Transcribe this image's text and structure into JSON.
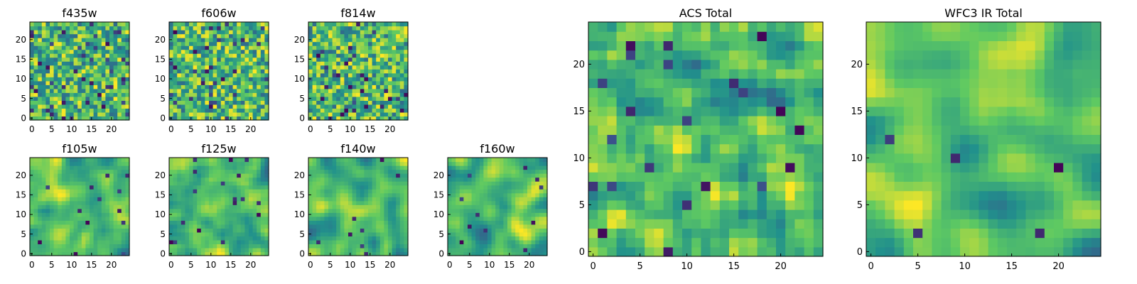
{
  "chart_data": [
    {
      "type": "heatmap",
      "title": "f435w",
      "grid_size": 25,
      "xlim": [
        0,
        24
      ],
      "ylim": [
        0,
        24
      ],
      "xticks": [
        "0",
        "5",
        "10",
        "15",
        "20"
      ],
      "yticks": [
        "0",
        "5",
        "10",
        "15",
        "20"
      ],
      "seed": 11,
      "smooth": 0,
      "dark_fraction": 0.06
    },
    {
      "type": "heatmap",
      "title": "f606w",
      "grid_size": 25,
      "xlim": [
        0,
        24
      ],
      "ylim": [
        0,
        24
      ],
      "xticks": [
        "0",
        "5",
        "10",
        "15",
        "20"
      ],
      "yticks": [
        "0",
        "5",
        "10",
        "15",
        "20"
      ],
      "seed": 23,
      "smooth": 0,
      "dark_fraction": 0.05
    },
    {
      "type": "heatmap",
      "title": "f814w",
      "grid_size": 25,
      "xlim": [
        0,
        24
      ],
      "ylim": [
        0,
        24
      ],
      "xticks": [
        "0",
        "5",
        "10",
        "15",
        "20"
      ],
      "yticks": [
        "0",
        "5",
        "10",
        "15",
        "20"
      ],
      "seed": 37,
      "smooth": 0,
      "dark_fraction": 0.05
    },
    {
      "type": "heatmap",
      "title": "f105w",
      "grid_size": 25,
      "xlim": [
        0,
        24
      ],
      "ylim": [
        0,
        24
      ],
      "xticks": [
        "0",
        "5",
        "10",
        "15",
        "20"
      ],
      "yticks": [
        "0",
        "5",
        "10",
        "15",
        "20"
      ],
      "seed": 41,
      "smooth": 2,
      "dark_fraction": 0.03
    },
    {
      "type": "heatmap",
      "title": "f125w",
      "grid_size": 25,
      "xlim": [
        0,
        24
      ],
      "ylim": [
        0,
        24
      ],
      "xticks": [
        "0",
        "5",
        "10",
        "15",
        "20"
      ],
      "yticks": [
        "0",
        "5",
        "10",
        "15",
        "20"
      ],
      "seed": 53,
      "smooth": 2,
      "dark_fraction": 0.03
    },
    {
      "type": "heatmap",
      "title": "f140w",
      "grid_size": 25,
      "xlim": [
        0,
        24
      ],
      "ylim": [
        0,
        24
      ],
      "xticks": [
        "0",
        "5",
        "10",
        "15",
        "20"
      ],
      "yticks": [
        "0",
        "5",
        "10",
        "15",
        "20"
      ],
      "seed": 67,
      "smooth": 3,
      "dark_fraction": 0.02
    },
    {
      "type": "heatmap",
      "title": "f160w",
      "grid_size": 25,
      "xlim": [
        0,
        24
      ],
      "ylim": [
        0,
        24
      ],
      "xticks": [
        "0",
        "5",
        "10",
        "15",
        "20"
      ],
      "yticks": [
        "0",
        "5",
        "10",
        "15",
        "20"
      ],
      "seed": 79,
      "smooth": 3,
      "dark_fraction": 0.02
    },
    {
      "type": "heatmap",
      "title": "ACS Total",
      "grid_size": 25,
      "xlim": [
        0,
        24
      ],
      "ylim": [
        0,
        24
      ],
      "xticks": [
        "0",
        "5",
        "10",
        "15",
        "20"
      ],
      "yticks": [
        "0",
        "5",
        "10",
        "15",
        "20"
      ],
      "seed": 97,
      "smooth": 1,
      "dark_fraction": 0.03
    },
    {
      "type": "heatmap",
      "title": "WFC3 IR Total",
      "grid_size": 25,
      "xlim": [
        0,
        24
      ],
      "ylim": [
        0,
        24
      ],
      "xticks": [
        "0",
        "5",
        "10",
        "15",
        "20"
      ],
      "yticks": [
        "0",
        "5",
        "10",
        "15",
        "20"
      ],
      "seed": 131,
      "smooth": 3,
      "dark_fraction": 0.02
    }
  ],
  "colormap": [
    "#440154",
    "#3b528b",
    "#21918c",
    "#5ec962",
    "#fde725"
  ]
}
